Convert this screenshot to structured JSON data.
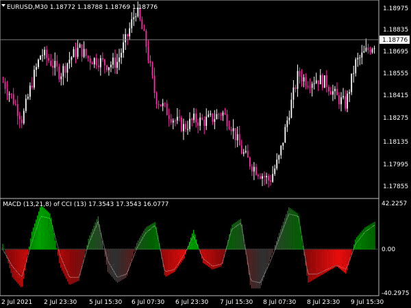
{
  "main_panel": {
    "symbol_info": "EURUSD,M30  1.18772 1.18788 1.18769 1.18776",
    "price_labels": [
      "1.18975",
      "1.18835",
      "1.18695",
      "1.18555",
      "1.18415",
      "1.18275",
      "1.18135",
      "1.17995",
      "1.17855"
    ],
    "current_price": "1.18776",
    "colors": {
      "bull_candle": "#ffffff",
      "bear_candle": "#ff2ea8",
      "current_price_tag": "#ffffff"
    }
  },
  "indicator_panel": {
    "title": "MACD (13,21,8) of CCI (13) 17.3543 17.3543 16.0777",
    "levels": [
      "42.2257",
      "0.00",
      "-40.2975"
    ],
    "colors": {
      "positive_bars": "#00c000",
      "negative_bars": "#ff1a1a",
      "signal_line": "#c0c0c0"
    }
  },
  "time_axis": {
    "labels": [
      "2 Jul 2021",
      "2 Jul 23:30",
      "5 Jul 15:30",
      "6 Jul 07:30",
      "6 Jul 23:30",
      "7 Jul 15:30",
      "8 Jul 07:30",
      "8 Jul 23:30",
      "9 Jul 15:30"
    ]
  },
  "chart_data": {
    "type": "candlestick",
    "price_close_approx": [
      1.1853,
      1.1842,
      1.1828,
      1.1852,
      1.1872,
      1.1866,
      1.1858,
      1.1868,
      1.1875,
      1.1868,
      1.1867,
      1.1864,
      1.1866,
      1.1882,
      1.1901,
      1.1878,
      1.1843,
      1.1835,
      1.1828,
      1.1823,
      1.1828,
      1.1827,
      1.1829,
      1.1833,
      1.1824,
      1.1808,
      1.1799,
      1.1793,
      1.1788,
      1.1803,
      1.1832,
      1.1858,
      1.1853,
      1.1855,
      1.1852,
      1.1843,
      1.1838,
      1.1865,
      1.1872,
      1.1878
    ],
    "macd_approx": [
      5,
      -25,
      -35,
      15,
      40,
      32,
      -15,
      -32,
      -28,
      10,
      30,
      -20,
      -30,
      -25,
      5,
      20,
      25,
      -25,
      -20,
      -8,
      18,
      -12,
      -18,
      -15,
      22,
      28,
      -35,
      -35,
      -10,
      15,
      38,
      32,
      -30,
      -25,
      -20,
      -15,
      -22,
      10,
      20,
      25
    ],
    "signal_approx": [
      0,
      -15,
      -25,
      5,
      30,
      28,
      -5,
      -25,
      -25,
      5,
      25,
      -10,
      -25,
      -22,
      0,
      15,
      22,
      -20,
      -18,
      -5,
      12,
      -8,
      -15,
      -13,
      18,
      24,
      -28,
      -30,
      -12,
      10,
      32,
      30,
      -22,
      -22,
      -18,
      -14,
      -18,
      5,
      16,
      22
    ],
    "price_ylim": [
      1.178,
      1.1903
    ],
    "macd_ylim": [
      -40.2975,
      42.2257
    ]
  }
}
